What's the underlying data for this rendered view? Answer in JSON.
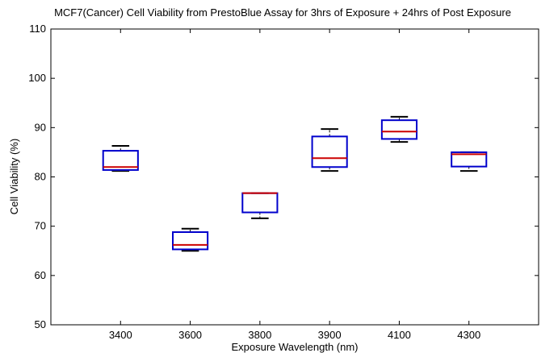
{
  "chart_data": {
    "type": "box",
    "title": "MCF7(Cancer) Cell Viability from PrestoBlue Assay for 3hrs of Exposure + 24hrs of Post Exposure",
    "xlabel": "Exposure Wavelength (nm)",
    "ylabel": "Cell Viability (%)",
    "ylim": [
      50,
      110
    ],
    "yticks": [
      50,
      60,
      70,
      80,
      90,
      100,
      110
    ],
    "grid": false,
    "categories": [
      "3400",
      "3600",
      "3800",
      "3900",
      "4100",
      "4300"
    ],
    "boxes": [
      {
        "category": "3400",
        "whisker_low": 81.2,
        "q1": 81.4,
        "median": 82.0,
        "q3": 85.3,
        "whisker_high": 86.3
      },
      {
        "category": "3600",
        "whisker_low": 65.0,
        "q1": 65.3,
        "median": 66.2,
        "q3": 68.8,
        "whisker_high": 69.5
      },
      {
        "category": "3800",
        "whisker_low": 71.6,
        "q1": 72.8,
        "median": 76.7,
        "q3": 76.7,
        "whisker_high": 76.7
      },
      {
        "category": "3900",
        "whisker_low": 81.2,
        "q1": 82.0,
        "median": 83.8,
        "q3": 88.2,
        "whisker_high": 89.7
      },
      {
        "category": "4100",
        "whisker_low": 87.1,
        "q1": 87.7,
        "median": 89.2,
        "q3": 91.5,
        "whisker_high": 92.2
      },
      {
        "category": "4300",
        "whisker_low": 81.2,
        "q1": 82.1,
        "median": 84.6,
        "q3": 85.0,
        "whisker_high": 85.0
      }
    ],
    "colors": {
      "box": "#0000cc",
      "median": "#cc0000",
      "whisker": "#000000",
      "axis": "#000000"
    }
  }
}
